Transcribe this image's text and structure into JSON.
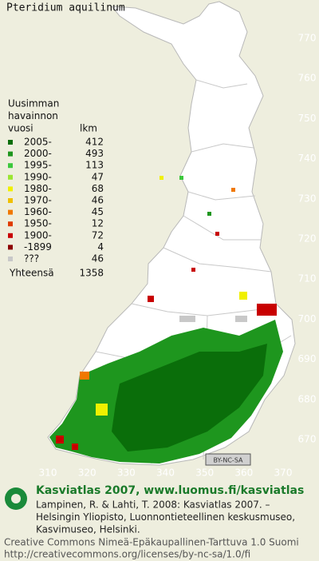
{
  "title": "Pteridium aquilinum",
  "legend": {
    "heading": [
      "Uusimman",
      "havainnon"
    ],
    "col_year": "vuosi",
    "col_count": "lkm",
    "entries": [
      {
        "label": "2005-",
        "count": 412,
        "color": "#0a6e0a"
      },
      {
        "label": "2000-",
        "count": 493,
        "color": "#1e961e"
      },
      {
        "label": "1995-",
        "count": 113,
        "color": "#3cc83c"
      },
      {
        "label": "1990-",
        "count": 47,
        "color": "#9be632"
      },
      {
        "label": "1980-",
        "count": 68,
        "color": "#f0f000"
      },
      {
        "label": "1970-",
        "count": 46,
        "color": "#f0c000"
      },
      {
        "label": "1960-",
        "count": 45,
        "color": "#f07800"
      },
      {
        "label": "1950-",
        "count": 12,
        "color": "#e03c00"
      },
      {
        "label": "1900-",
        "count": 72,
        "color": "#c80000"
      },
      {
        "label": "-1899",
        "count": 4,
        "color": "#8c0000"
      },
      {
        "label": "???",
        "count": 46,
        "color": "#c8c8c8"
      }
    ],
    "total_label": "Yhteensä",
    "total": 1358
  },
  "axes": {
    "xlim": [
      310,
      370
    ],
    "xticks": [
      310,
      320,
      330,
      340,
      350,
      360,
      370
    ],
    "ylim": [
      670,
      770
    ],
    "yticks": [
      670,
      680,
      690,
      700,
      710,
      720,
      730,
      740,
      750,
      760,
      770
    ]
  },
  "license_badge": "BY-NC-SA",
  "footer": {
    "site": "Kasviatlas 2007, www.luomus.fi/kasviatlas",
    "citation": [
      "Lampinen, R. & Lahti, T. 2008: Kasviatlas 2007. –",
      "Helsingin Yliopisto, Luonnontieteellinen keskusmuseo,",
      "Kasvimuseo, Helsinki."
    ],
    "license": [
      "Creative Commons Nimeä-Epäkaupallinen-Tarttuva 1.0 Suomi",
      "http://creativecommons.org/licenses/by-nc-sa/1.0/fi"
    ]
  }
}
